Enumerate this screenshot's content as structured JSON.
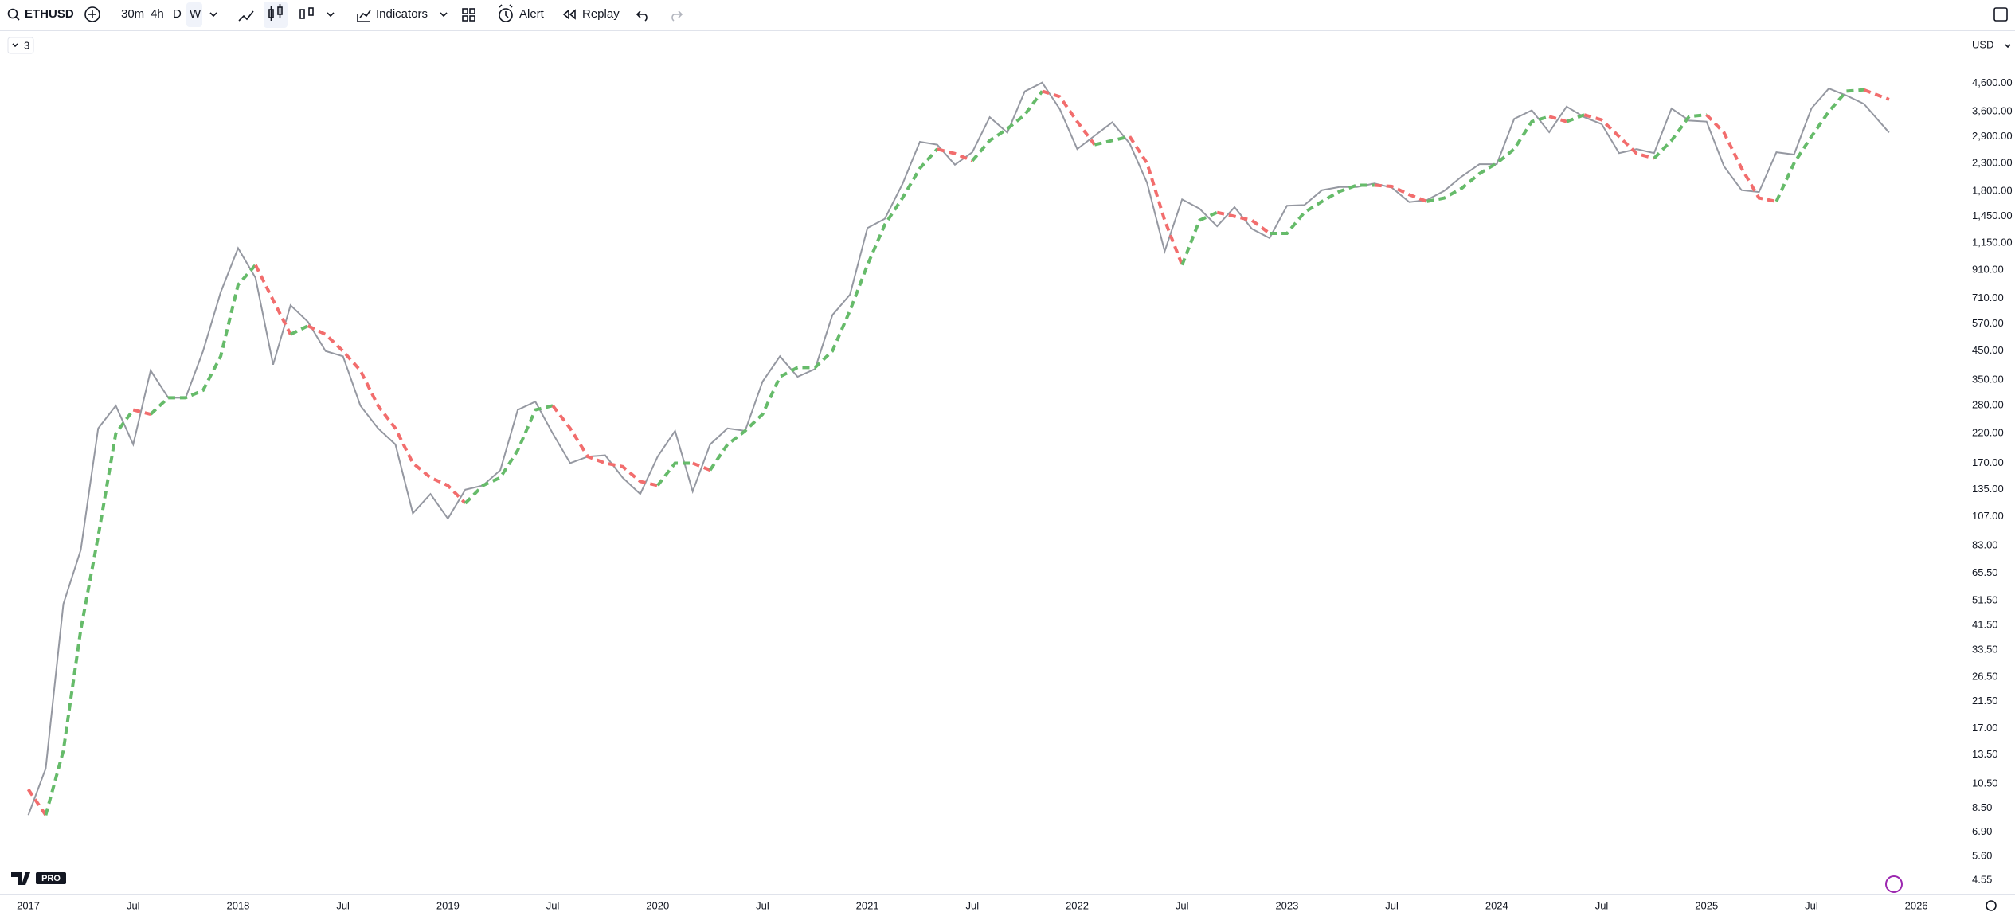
{
  "toolbar": {
    "symbol": "ETHUSD",
    "intervals": [
      "30m",
      "4h",
      "D",
      "W"
    ],
    "indicators": "Indicators",
    "alert": "Alert",
    "replay": "Replay"
  },
  "legend_badge": "3",
  "currency": "USD",
  "logo_badge": "PRO",
  "chart_data": {
    "type": "line",
    "log_scale": true,
    "grid": false,
    "x": [
      2017,
      2017.083,
      2017.167,
      2017.25,
      2017.333,
      2017.417,
      2017.5,
      2017.583,
      2017.667,
      2017.75,
      2017.833,
      2017.917,
      2018,
      2018.083,
      2018.167,
      2018.25,
      2018.333,
      2018.417,
      2018.5,
      2018.583,
      2018.667,
      2018.75,
      2018.833,
      2018.917,
      2019,
      2019.083,
      2019.167,
      2019.25,
      2019.333,
      2019.417,
      2019.5,
      2019.583,
      2019.667,
      2019.75,
      2019.833,
      2019.917,
      2020,
      2020.083,
      2020.167,
      2020.25,
      2020.333,
      2020.417,
      2020.5,
      2020.583,
      2020.667,
      2020.75,
      2020.833,
      2020.917,
      2021,
      2021.083,
      2021.167,
      2021.25,
      2021.333,
      2021.417,
      2021.5,
      2021.583,
      2021.667,
      2021.75,
      2021.833,
      2021.917,
      2022,
      2022.083,
      2022.167,
      2022.25,
      2022.333,
      2022.417,
      2022.5,
      2022.583,
      2022.667,
      2022.75,
      2022.833,
      2022.917,
      2023,
      2023.083,
      2023.167,
      2023.25,
      2023.333,
      2023.417,
      2023.5,
      2023.583,
      2023.667,
      2023.75,
      2023.833,
      2023.917,
      2024,
      2024.083,
      2024.167,
      2024.25,
      2024.333,
      2024.417,
      2024.5,
      2024.583,
      2024.667,
      2024.75,
      2024.833,
      2024.917,
      2025,
      2025.083,
      2025.167,
      2025.25,
      2025.333,
      2025.417,
      2025.5,
      2025.583,
      2025.667,
      2025.75,
      2025.87
    ],
    "series": [
      {
        "name": "ETHUSD",
        "color": "#9598a1",
        "values": [
          8,
          12,
          50,
          80,
          230,
          280,
          200,
          380,
          300,
          300,
          450,
          750,
          1100,
          850,
          400,
          670,
          580,
          450,
          430,
          280,
          230,
          200,
          110,
          130,
          105,
          135,
          140,
          160,
          270,
          290,
          220,
          170,
          180,
          182,
          150,
          130,
          180,
          225,
          133,
          200,
          230,
          225,
          345,
          430,
          360,
          385,
          615,
          735,
          1310,
          1420,
          1920,
          2770,
          2700,
          2270,
          2530,
          3430,
          3000,
          4290,
          4630,
          3680,
          2600,
          2920,
          3280,
          2730,
          1940,
          1070,
          1680,
          1550,
          1330,
          1570,
          1300,
          1200,
          1590,
          1600,
          1820,
          1870,
          1870,
          1930,
          1860,
          1640,
          1670,
          1810,
          2050,
          2280,
          2280,
          3380,
          3640,
          3010,
          3760,
          3430,
          3230,
          2510,
          2600,
          2510,
          3700,
          3330,
          3300,
          2240,
          1820,
          1790,
          2530,
          2480,
          3700,
          4400,
          4140,
          3850,
          3000
        ]
      },
      {
        "up_color": "#66bb6a",
        "down_color": "#f26d6d",
        "dashed": true,
        "values": [
          10,
          8,
          14,
          40,
          90,
          220,
          270,
          260,
          300,
          300,
          320,
          430,
          800,
          950,
          700,
          520,
          560,
          520,
          450,
          380,
          280,
          230,
          170,
          150,
          140,
          120,
          140,
          150,
          190,
          270,
          280,
          230,
          180,
          170,
          165,
          145,
          140,
          170,
          170,
          160,
          200,
          225,
          260,
          360,
          390,
          390,
          450,
          640,
          950,
          1350,
          1700,
          2200,
          2600,
          2500,
          2350,
          2800,
          3100,
          3500,
          4300,
          4100,
          3300,
          2700,
          2800,
          2900,
          2300,
          1400,
          950,
          1400,
          1500,
          1450,
          1400,
          1250,
          1250,
          1500,
          1650,
          1800,
          1900,
          1900,
          1880,
          1750,
          1650,
          1700,
          1850,
          2100,
          2300,
          2600,
          3300,
          3450,
          3300,
          3500,
          3350,
          2900,
          2500,
          2400,
          2800,
          3450,
          3500,
          3000,
          2200,
          1700,
          1650,
          2300,
          2900,
          3600,
          4300,
          4350,
          4000
        ]
      }
    ],
    "xlim": [
      2016.865,
      2026.216
    ],
    "xticks": [
      2017,
      {
        "value": 2017.5,
        "label": "Jul"
      },
      2018,
      {
        "value": 2018.5,
        "label": "Jul"
      },
      2019,
      {
        "value": 2019.5,
        "label": "Jul"
      },
      2020,
      {
        "value": 2020.5,
        "label": "Jul"
      },
      2021,
      {
        "value": 2021.5,
        "label": "Jul"
      },
      2022,
      {
        "value": 2022.5,
        "label": "Jul"
      },
      2023,
      {
        "value": 2023.5,
        "label": "Jul"
      },
      2024,
      {
        "value": 2024.5,
        "label": "Jul"
      },
      2025,
      {
        "value": 2025.5,
        "label": "Jul"
      },
      2026
    ],
    "ylim": [
      4.07,
      6950
    ],
    "yticks": [
      {
        "value": 4.55,
        "label": "4.55"
      },
      {
        "value": 5.6,
        "label": "5.60"
      },
      {
        "value": 6.9,
        "label": "6.90"
      },
      {
        "value": 8.5,
        "label": "8.50"
      },
      {
        "value": 10.5,
        "label": "10.50"
      },
      {
        "value": 13.5,
        "label": "13.50"
      },
      {
        "value": 17,
        "label": "17.00"
      },
      {
        "value": 21.5,
        "label": "21.50"
      },
      {
        "value": 26.5,
        "label": "26.50"
      },
      {
        "value": 33.5,
        "label": "33.50"
      },
      {
        "value": 41.5,
        "label": "41.50"
      },
      {
        "value": 51.5,
        "label": "51.50"
      },
      {
        "value": 65.5,
        "label": "65.50"
      },
      {
        "value": 83,
        "label": "83.00"
      },
      {
        "value": 107,
        "label": "107.00"
      },
      {
        "value": 135,
        "label": "135.00"
      },
      {
        "value": 170,
        "label": "170.00"
      },
      {
        "value": 220,
        "label": "220.00"
      },
      {
        "value": 280,
        "label": "280.00"
      },
      {
        "value": 350,
        "label": "350.00"
      },
      {
        "value": 450,
        "label": "450.00"
      },
      {
        "value": 570,
        "label": "570.00"
      },
      {
        "value": 710,
        "label": "710.00"
      },
      {
        "value": 910,
        "label": "910.00"
      },
      {
        "value": 1150,
        "label": "1,150.00"
      },
      {
        "value": 1450,
        "label": "1,450.00"
      },
      {
        "value": 1800,
        "label": "1,800.00"
      },
      {
        "value": 2300,
        "label": "2,300.00"
      },
      {
        "value": 2900,
        "label": "2,900.00"
      },
      {
        "value": 3600,
        "label": "3,600.00"
      },
      {
        "value": 4600,
        "label": "4,600.00"
      }
    ]
  }
}
